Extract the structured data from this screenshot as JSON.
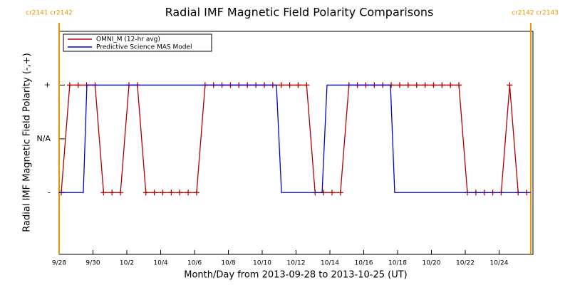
{
  "chart_data": {
    "type": "line",
    "title": "Radial IMF Magnetic Field Polarity Comparisons",
    "x_label": "Month/Day from 2013-09-28 to 2013-10-25 (UT)",
    "y_label": "Radial IMF Magnetic Field Polarity (-,+)",
    "xlim": [
      0,
      28
    ],
    "xticks": [
      {
        "value": 0,
        "label": "9/28"
      },
      {
        "value": 2,
        "label": "9/30"
      },
      {
        "value": 4,
        "label": "10/2"
      },
      {
        "value": 6,
        "label": "10/4"
      },
      {
        "value": 8,
        "label": "10/6"
      },
      {
        "value": 10,
        "label": "10/8"
      },
      {
        "value": 12,
        "label": "10/10"
      },
      {
        "value": 14,
        "label": "10/12"
      },
      {
        "value": 16,
        "label": "10/14"
      },
      {
        "value": 18,
        "label": "10/16"
      },
      {
        "value": 20,
        "label": "10/18"
      },
      {
        "value": 22,
        "label": "10/20"
      },
      {
        "value": 24,
        "label": "10/22"
      },
      {
        "value": 26,
        "label": "10/24"
      }
    ],
    "ylim": [
      -2.15,
      2
    ],
    "yticks": [
      {
        "value": 1,
        "label": "+"
      },
      {
        "value": 0,
        "label": "N/A"
      },
      {
        "value": -1,
        "label": "-"
      }
    ],
    "legend": "upper left",
    "series": [
      {
        "name": "OMNI_M (12-hr avg)",
        "color": "#b00000",
        "markers": true,
        "x": [
          0.125,
          0.625,
          1.125,
          1.625,
          2.125,
          2.625,
          3.125,
          3.625,
          4.125,
          4.625,
          5.125,
          5.625,
          6.125,
          6.625,
          7.125,
          7.625,
          8.125,
          8.625,
          9.125,
          9.625,
          10.125,
          10.625,
          11.125,
          11.625,
          12.125,
          12.625,
          13.125,
          13.625,
          14.125,
          14.625,
          15.125,
          15.625,
          16.125,
          16.625,
          17.125,
          17.625,
          18.125,
          18.625,
          19.125,
          19.625,
          20.125,
          20.625,
          21.125,
          21.625,
          22.125,
          22.625,
          23.125,
          23.625,
          24.125,
          24.625,
          25.125,
          25.625,
          26.125,
          26.625,
          27.125,
          27.625
        ],
        "values": [
          -1,
          1,
          1,
          1,
          1,
          -1,
          -1,
          -1,
          1,
          1,
          -1,
          -1,
          -1,
          -1,
          -1,
          -1,
          -1,
          1,
          1,
          1,
          1,
          1,
          1,
          1,
          1,
          1,
          1,
          1,
          1,
          1,
          -1,
          -1,
          -1,
          -1,
          1,
          1,
          1,
          1,
          1,
          1,
          1,
          1,
          1,
          1,
          1,
          1,
          1,
          1,
          -1,
          -1,
          -1,
          -1,
          -1,
          1,
          -1,
          -1
        ]
      },
      {
        "name": "Predictive Science MAS Model",
        "color": "#0000cc",
        "markers": false,
        "x": [
          0,
          1.43,
          1.64,
          12.84,
          13.14,
          15.54,
          15.83,
          19.58,
          19.83,
          27.87
        ],
        "values": [
          -1,
          -1,
          1,
          1,
          -1,
          -1,
          1,
          1,
          -1,
          -1
        ]
      }
    ],
    "annotations": [
      {
        "text": "cr2141 cr2142",
        "x": 0,
        "color": "#e69500"
      },
      {
        "text": "cr2142 cr2143",
        "x": 27.87,
        "color": "#e69500"
      }
    ]
  }
}
